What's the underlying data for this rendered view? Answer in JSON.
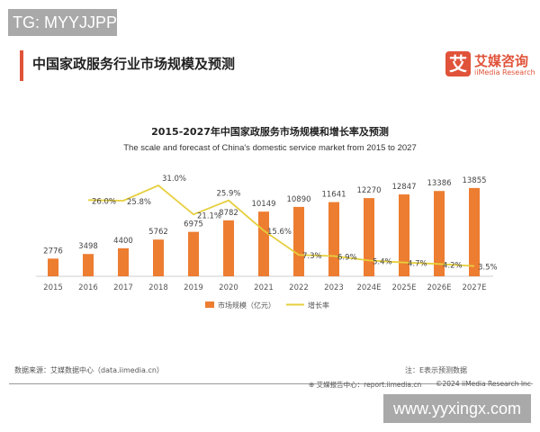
{
  "watermarks": {
    "top": "TG: MYYJJPP",
    "bottom": "www.yyxingx.com"
  },
  "page_title": "中国家政服务行业市场规模及预测",
  "logo": {
    "mark": "艾",
    "name_cn": "艾媒咨询",
    "name_en": "iiMedia Research"
  },
  "colors": {
    "accent": "#e0533a",
    "bar": "#ed7d31",
    "line": "#e6cf3c"
  },
  "chart_data": {
    "type": "bar+line",
    "title": "2015-2027年中国家政服务市场规模和增长率及预测",
    "subtitle": "The scale and forecast of China's domestic service market from 2015 to 2027",
    "categories": [
      "2015",
      "2016",
      "2017",
      "2018",
      "2019",
      "2020",
      "2021",
      "2022",
      "2023",
      "2024E",
      "2025E",
      "2026E",
      "2027E"
    ],
    "series": [
      {
        "name": "市场规模（亿元）",
        "type": "bar",
        "values": [
          2776,
          3498,
          4400,
          5762,
          6975,
          8782,
          10149,
          10890,
          11641,
          12270,
          12847,
          13386,
          13855
        ],
        "labels": [
          "2776",
          "3498",
          "4400",
          "5762",
          "6975",
          "8782",
          "10149",
          "10890",
          "11641",
          "12270",
          "12847",
          "13386",
          "13855"
        ]
      },
      {
        "name": "增长率",
        "type": "line",
        "values": [
          null,
          26.0,
          25.8,
          31.0,
          21.1,
          25.9,
          15.6,
          7.3,
          6.9,
          5.4,
          4.7,
          4.2,
          3.5
        ],
        "labels": [
          "",
          "26.0%",
          "25.8%",
          "31.0%",
          "21.1%",
          "25.9%",
          "15.6%",
          "7.3%",
          "6.9%",
          "5.4%",
          "4.7%",
          "4.2%",
          "3.5%"
        ]
      }
    ],
    "legend_position": "bottom",
    "grid": false
  },
  "footer": {
    "source": "数据来源：艾媒数据中心（data.iimedia.cn）",
    "note": "注：E表示预测数据",
    "report": "艾媒报告中心：report.iimedia.cn",
    "copyright": "©2024  iiMedia Research Inc"
  }
}
